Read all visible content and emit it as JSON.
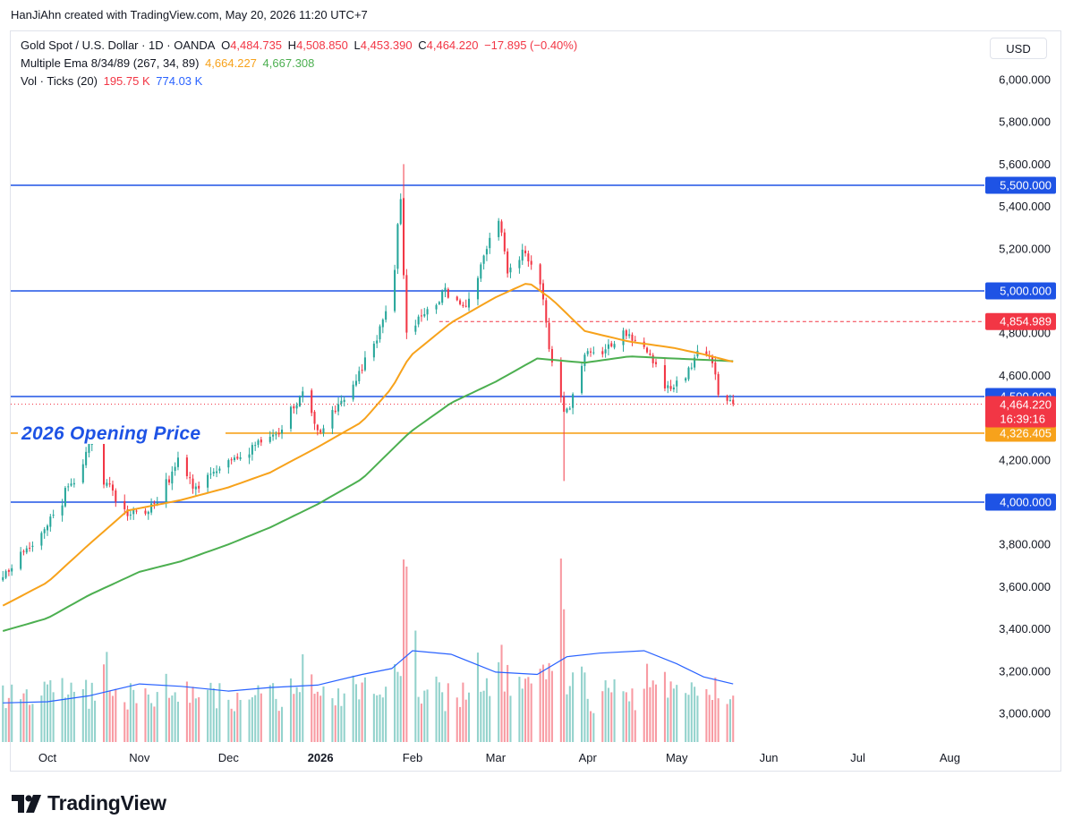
{
  "credit": "HanJiAhn created with TradingView.com, May 20, 2026 11:20 UTC+7",
  "legend": {
    "symbol": "Gold Spot / U.S. Dollar · 1D · OANDA",
    "open_label": "O",
    "open": "4,484.735",
    "high_label": "H",
    "high": "4,508.850",
    "low_label": "L",
    "low": "4,453.390",
    "close_label": "C",
    "close": "4,464.220",
    "change": "−17.895 (−0.40%)",
    "ema_label": "Multiple Ema 8/34/89 (267, 34, 89)",
    "ema1": "4,664.227",
    "ema2": "4,667.308",
    "vol_label": "Vol · Ticks (20)",
    "vol1": "195.75 K",
    "vol2": "774.03 K"
  },
  "currency": "USD",
  "brand": "TradingView",
  "colors": {
    "up": "#26a69a",
    "down": "#f23645",
    "ema_fast": "#f7a21b",
    "ema_slow": "#4caf50",
    "hline": "#1e53e5",
    "vol_ma": "#2962ff"
  },
  "chart_data": {
    "type": "candlestick",
    "symbol": "XAUUSD",
    "timeframe": "1D",
    "ylim": [
      2850,
      6100
    ],
    "y_ticks": [
      3000,
      3200,
      3400,
      3600,
      3800,
      4000,
      4200,
      4400,
      4600,
      4800,
      5000,
      5200,
      5400,
      5600,
      5800,
      6000
    ],
    "y_tick_labels": [
      "3,000.000",
      "3,200.000",
      "3,400.000",
      "3,600.000",
      "3,800.000",
      "4,000.000",
      "4,200.000",
      "4,400.000",
      "4,600.000",
      "4,800.000",
      "5,000.000",
      "5,200.000",
      "5,400.000",
      "5,600.000",
      "5,800.000",
      "6,000.000"
    ],
    "x_ticks": [
      {
        "label": "Oct",
        "date": "2025-10-01"
      },
      {
        "label": "Nov",
        "date": "2025-11-01"
      },
      {
        "label": "Dec",
        "date": "2025-12-01"
      },
      {
        "label": "2026",
        "date": "2026-01-01",
        "bold": true
      },
      {
        "label": "Feb",
        "date": "2026-02-01"
      },
      {
        "label": "Mar",
        "date": "2026-03-01"
      },
      {
        "label": "Apr",
        "date": "2026-04-01"
      },
      {
        "label": "May",
        "date": "2026-05-01"
      },
      {
        "label": "Jun",
        "date": "2026-06-01"
      },
      {
        "label": "Jul",
        "date": "2026-07-01"
      },
      {
        "label": "Aug",
        "date": "2026-08-01"
      }
    ],
    "date_range": [
      "2025-09-16",
      "2026-05-20"
    ],
    "price_path": [
      [
        "2025-09-16",
        3640
      ],
      [
        "2025-09-23",
        3760
      ],
      [
        "2025-09-30",
        3860
      ],
      [
        "2025-10-07",
        4040
      ],
      [
        "2025-10-13",
        4180
      ],
      [
        "2025-10-17",
        4340
      ],
      [
        "2025-10-21",
        4080
      ],
      [
        "2025-10-28",
        3950
      ],
      [
        "2025-11-04",
        3960
      ],
      [
        "2025-11-10",
        4080
      ],
      [
        "2025-11-14",
        4190
      ],
      [
        "2025-11-20",
        4060
      ],
      [
        "2025-11-28",
        4170
      ],
      [
        "2025-12-05",
        4210
      ],
      [
        "2025-12-12",
        4290
      ],
      [
        "2025-12-19",
        4340
      ],
      [
        "2025-12-26",
        4520
      ],
      [
        "2025-12-31",
        4320
      ],
      [
        "2026-01-07",
        4460
      ],
      [
        "2026-01-14",
        4600
      ],
      [
        "2026-01-21",
        4820
      ],
      [
        "2026-01-26",
        5090
      ],
      [
        "2026-01-28",
        5420
      ],
      [
        "2026-01-30",
        4820
      ],
      [
        "2026-02-05",
        4880
      ],
      [
        "2026-02-12",
        5000
      ],
      [
        "2026-02-19",
        4920
      ],
      [
        "2026-02-25",
        5200
      ],
      [
        "2026-03-02",
        5350
      ],
      [
        "2026-03-05",
        5100
      ],
      [
        "2026-03-10",
        5180
      ],
      [
        "2026-03-16",
        5020
      ],
      [
        "2026-03-19",
        4700
      ],
      [
        "2026-03-23",
        4420
      ],
      [
        "2026-03-26",
        4450
      ],
      [
        "2026-03-31",
        4700
      ],
      [
        "2026-04-07",
        4720
      ],
      [
        "2026-04-14",
        4800
      ],
      [
        "2026-04-21",
        4720
      ],
      [
        "2026-04-28",
        4540
      ],
      [
        "2026-05-04",
        4580
      ],
      [
        "2026-05-08",
        4720
      ],
      [
        "2026-05-12",
        4700
      ],
      [
        "2026-05-15",
        4540
      ],
      [
        "2026-05-20",
        4464
      ]
    ],
    "key_points": [
      {
        "date": "2026-01-29",
        "value": 5600,
        "kind": "high"
      },
      {
        "date": "2026-03-24",
        "value": 4100,
        "kind": "low"
      }
    ],
    "ema_fast_path": [
      [
        "2025-09-16",
        3510
      ],
      [
        "2025-10-01",
        3620
      ],
      [
        "2025-10-15",
        3800
      ],
      [
        "2025-10-28",
        3960
      ],
      [
        "2025-11-15",
        4010
      ],
      [
        "2025-12-01",
        4070
      ],
      [
        "2025-12-15",
        4140
      ],
      [
        "2025-12-31",
        4260
      ],
      [
        "2026-01-15",
        4380
      ],
      [
        "2026-01-25",
        4540
      ],
      [
        "2026-01-31",
        4690
      ],
      [
        "2026-02-14",
        4850
      ],
      [
        "2026-03-01",
        4970
      ],
      [
        "2026-03-12",
        5040
      ],
      [
        "2026-03-20",
        4960
      ],
      [
        "2026-03-31",
        4810
      ],
      [
        "2026-04-15",
        4760
      ],
      [
        "2026-04-30",
        4730
      ],
      [
        "2026-05-10",
        4700
      ],
      [
        "2026-05-20",
        4664.227
      ]
    ],
    "ema_slow_path": [
      [
        "2025-09-16",
        3390
      ],
      [
        "2025-10-01",
        3450
      ],
      [
        "2025-10-15",
        3560
      ],
      [
        "2025-11-01",
        3670
      ],
      [
        "2025-11-15",
        3720
      ],
      [
        "2025-12-01",
        3800
      ],
      [
        "2025-12-15",
        3880
      ],
      [
        "2025-12-31",
        3990
      ],
      [
        "2026-01-15",
        4110
      ],
      [
        "2026-01-31",
        4330
      ],
      [
        "2026-02-14",
        4470
      ],
      [
        "2026-03-01",
        4570
      ],
      [
        "2026-03-15",
        4680
      ],
      [
        "2026-03-31",
        4660
      ],
      [
        "2026-04-15",
        4690
      ],
      [
        "2026-04-30",
        4680
      ],
      [
        "2026-05-20",
        4667.308
      ]
    ],
    "horizontal_lines": [
      {
        "value": 5500,
        "label": "5,500.000",
        "style": "solid",
        "color": "#1e53e5"
      },
      {
        "value": 5000,
        "label": "5,000.000",
        "style": "solid",
        "color": "#1e53e5"
      },
      {
        "value": 4854.989,
        "label": "4,854.989",
        "style": "dashed",
        "color": "#f23645"
      },
      {
        "value": 4500,
        "label": "4,500.000",
        "style": "solid",
        "color": "#1e53e5"
      },
      {
        "value": 4326.405,
        "label": "4,326.405",
        "style": "solid",
        "color": "#f7a21b"
      },
      {
        "value": 4000,
        "label": "4,000.000",
        "style": "solid",
        "color": "#1e53e5"
      }
    ],
    "last_price": {
      "value": 4464.22,
      "label": "4,464.220",
      "countdown": "16:39:16",
      "color": "#f23645"
    },
    "annotations": [
      {
        "text": "2026 Opening Price",
        "value": 4326.405,
        "date": "2025-09-20",
        "color": "#1e53e5"
      }
    ],
    "volume": {
      "max": 774.03,
      "last": 195.75,
      "spikes": [
        {
          "date": "2026-01-29",
          "value": 770
        },
        {
          "date": "2026-01-30",
          "value": 740
        },
        {
          "date": "2026-03-23",
          "value": 774.03
        },
        {
          "date": "2026-03-24",
          "value": 560
        },
        {
          "date": "2025-10-21",
          "value": 380
        },
        {
          "date": "2025-12-26",
          "value": 370
        },
        {
          "date": "2026-02-02",
          "value": 470
        },
        {
          "date": "2026-03-03",
          "value": 410
        },
        {
          "date": "2026-04-21",
          "value": 330
        }
      ],
      "ma_path": [
        [
          "2025-09-16",
          165
        ],
        [
          "2025-10-01",
          170
        ],
        [
          "2025-10-15",
          195
        ],
        [
          "2025-11-01",
          245
        ],
        [
          "2025-11-15",
          235
        ],
        [
          "2025-12-01",
          215
        ],
        [
          "2025-12-15",
          230
        ],
        [
          "2025-12-31",
          240
        ],
        [
          "2026-01-15",
          285
        ],
        [
          "2026-01-25",
          310
        ],
        [
          "2026-02-01",
          385
        ],
        [
          "2026-02-14",
          370
        ],
        [
          "2026-03-01",
          295
        ],
        [
          "2026-03-15",
          285
        ],
        [
          "2026-03-25",
          360
        ],
        [
          "2026-04-05",
          375
        ],
        [
          "2026-04-20",
          385
        ],
        [
          "2026-05-01",
          330
        ],
        [
          "2026-05-10",
          275
        ],
        [
          "2026-05-20",
          245
        ]
      ]
    }
  }
}
